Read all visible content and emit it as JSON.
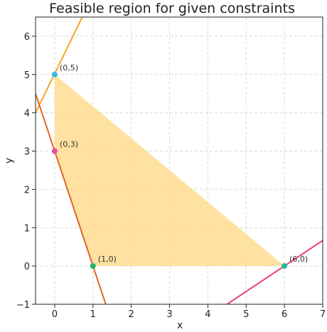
{
  "chart_data": {
    "type": "line",
    "title": "Feasible region for given constraints",
    "xlabel": "x",
    "ylabel": "y",
    "xlim": [
      -0.5,
      7
    ],
    "ylim": [
      -1,
      6.5
    ],
    "xticks": [
      0,
      1,
      2,
      3,
      4,
      5,
      6,
      7
    ],
    "yticks": [
      -1,
      0,
      1,
      2,
      3,
      4,
      5,
      6
    ],
    "grid": true,
    "feasible_region": {
      "vertices": [
        [
          0,
          5
        ],
        [
          6,
          0
        ],
        [
          1,
          0
        ],
        [
          0,
          3
        ]
      ],
      "color": "#ffd98a"
    },
    "series": [
      {
        "color": "#f5a623",
        "points": [
          [
            -0.5,
            4.0
          ],
          [
            0.72,
            6.5
          ]
        ]
      },
      {
        "color": "#e0662a",
        "points": [
          [
            -0.5,
            4.5
          ],
          [
            1.333,
            -1.0
          ]
        ]
      },
      {
        "color": "#e8436b",
        "points": [
          [
            4.5,
            -1.0
          ],
          [
            7.0,
            0.667
          ]
        ]
      }
    ],
    "points": [
      {
        "label": "(0,5)",
        "x": 0,
        "y": 5,
        "color": "#3fb6e6"
      },
      {
        "label": "(0,3)",
        "x": 0,
        "y": 3,
        "color": "#e84bb0"
      },
      {
        "label": "(1,0)",
        "x": 1,
        "y": 0,
        "color": "#21b36a"
      },
      {
        "label": "(6,0)",
        "x": 6,
        "y": 0,
        "color": "#26b8a8"
      }
    ]
  }
}
